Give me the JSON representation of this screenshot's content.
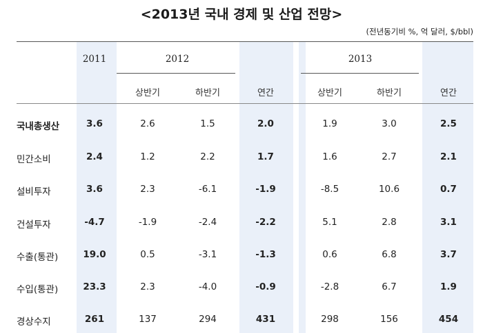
{
  "title": "<2013년 국내 경제 및 산업 전망>",
  "unit": "(전년동기비 %, 억 달러, $/bbl)",
  "years": [
    "2011",
    "2012",
    "2013"
  ],
  "subheaders": {
    "2012": [
      "상반기",
      "하반기",
      "연간"
    ],
    "2013": [
      "상반기",
      "하반기",
      "연간"
    ]
  },
  "rows": [
    {
      "label": "국내총생산",
      "y2011": "3.6",
      "h1_2012": "2.6",
      "h2_2012": "1.5",
      "a2012": "2.0",
      "h1_2013": "1.9",
      "h2_2013": "3.0",
      "a2013": "2.5"
    },
    {
      "label": "민간소비",
      "y2011": "2.4",
      "h1_2012": "1.2",
      "h2_2012": "2.2",
      "a2012": "1.7",
      "h1_2013": "1.6",
      "h2_2013": "2.7",
      "a2013": "2.1"
    },
    {
      "label": "설비투자",
      "y2011": "3.6",
      "h1_2012": "2.3",
      "h2_2012": "-6.1",
      "a2012": "-1.9",
      "h1_2013": "-8.5",
      "h2_2013": "10.6",
      "a2013": "0.7"
    },
    {
      "label": "건설투자",
      "y2011": "-4.7",
      "h1_2012": "-1.9",
      "h2_2012": "-2.4",
      "a2012": "-2.2",
      "h1_2013": "5.1",
      "h2_2013": "2.8",
      "a2013": "3.1"
    },
    {
      "label": "수출(통관)",
      "y2011": "19.0",
      "h1_2012": "0.5",
      "h2_2012": "-3.1",
      "a2012": "-1.3",
      "h1_2013": "0.6",
      "h2_2013": "6.8",
      "a2013": "3.7"
    },
    {
      "label": "수입(통관)",
      "y2011": "23.3",
      "h1_2012": "2.3",
      "h2_2012": "-4.0",
      "a2012": "-0.9",
      "h1_2013": "-2.8",
      "h2_2013": "6.7",
      "a2013": "1.9"
    },
    {
      "label": "경상수지",
      "y2011": "261",
      "h1_2012": "137",
      "h2_2012": "294",
      "a2012": "431",
      "h1_2013": "298",
      "h2_2013": "156",
      "a2013": "454"
    }
  ]
}
